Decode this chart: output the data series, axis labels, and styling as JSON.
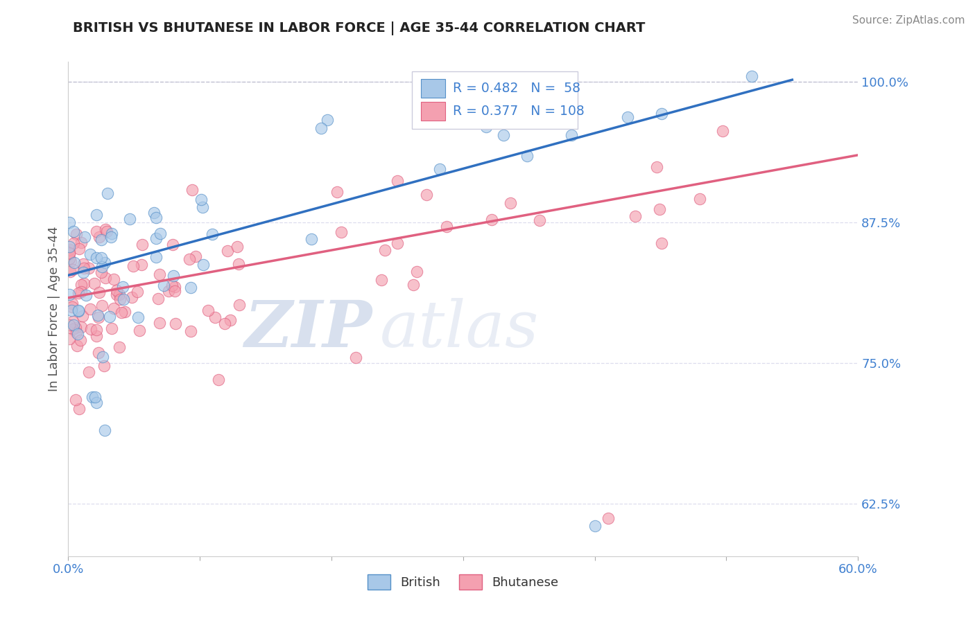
{
  "title": "BRITISH VS BHUTANESE IN LABOR FORCE | AGE 35-44 CORRELATION CHART",
  "source": "Source: ZipAtlas.com",
  "ylabel": "In Labor Force | Age 35-44",
  "xmin": 0.0,
  "xmax": 0.6,
  "ymin": 0.578,
  "ymax": 1.018,
  "yticks": [
    0.625,
    0.75,
    0.875,
    1.0
  ],
  "ytick_labels": [
    "62.5%",
    "75.0%",
    "87.5%",
    "100.0%"
  ],
  "dashed_line_y": 1.0,
  "british_color": "#a8c8e8",
  "bhutanese_color": "#f4a0b0",
  "british_edge_color": "#5590c8",
  "bhutanese_edge_color": "#e06080",
  "line_british_color": "#3070c0",
  "line_bhutanese_color": "#e06080",
  "british_R": 0.482,
  "british_N": 58,
  "bhutanese_R": 0.377,
  "bhutanese_N": 108,
  "british_line_x0": 0.0,
  "british_line_y0": 0.828,
  "british_line_x1": 0.55,
  "british_line_y1": 1.002,
  "bhutanese_line_x0": 0.0,
  "bhutanese_line_y0": 0.808,
  "bhutanese_line_x1": 0.6,
  "bhutanese_line_y1": 0.935,
  "watermark_zip": "ZIP",
  "watermark_atlas": "atlas",
  "tick_color": "#4080d0",
  "axis_label_color": "#555555",
  "background_color": "#ffffff",
  "grid_color": "#ddddee",
  "legend_border_color": "#ccccdd"
}
